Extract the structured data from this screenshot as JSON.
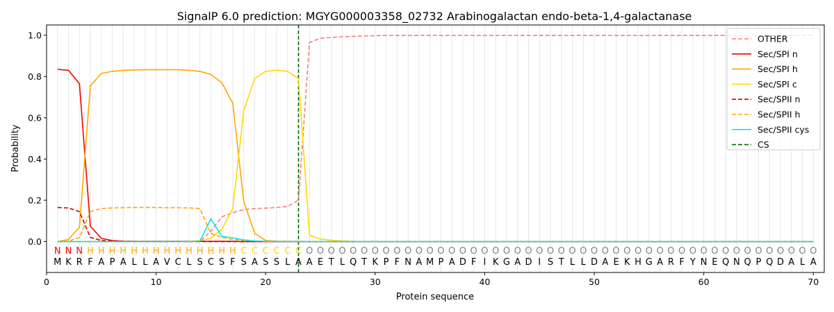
{
  "chart_data": {
    "type": "line",
    "title": "SignalP 6.0 prediction: MGYG000003358_02732 Arabinogalactan endo-beta-1,4-galactanase",
    "xlabel": "Protein sequence",
    "ylabel": "Probability",
    "xlim": [
      0,
      71
    ],
    "ylim": [
      -0.15,
      1.05
    ],
    "x_ticks": [
      "0",
      "10",
      "20",
      "30",
      "40",
      "50",
      "60",
      "70"
    ],
    "y_ticks": [
      "0.0",
      "0.2",
      "0.4",
      "0.6",
      "0.8",
      "1.0"
    ],
    "legend_position": "top-right",
    "sequence": [
      "M",
      "K",
      "R",
      "F",
      "A",
      "P",
      "A",
      "L",
      "L",
      "A",
      "V",
      "C",
      "L",
      "S",
      "C",
      "S",
      "F",
      "S",
      "A",
      "S",
      "S",
      "L",
      "A",
      "A",
      "E",
      "T",
      "L",
      "Q",
      "T",
      "K",
      "P",
      "F",
      "N",
      "A",
      "M",
      "P",
      "A",
      "D",
      "F",
      "I",
      "K",
      "G",
      "A",
      "D",
      "I",
      "S",
      "T",
      "L",
      "L",
      "D",
      "A",
      "E",
      "K",
      "H",
      "G",
      "A",
      "R",
      "F",
      "Y",
      "N",
      "E",
      "Q",
      "N",
      "Q",
      "P",
      "Q",
      "D",
      "A",
      "L",
      "A"
    ],
    "states": [
      "N",
      "N",
      "N",
      "H",
      "H",
      "H",
      "H",
      "H",
      "H",
      "H",
      "H",
      "H",
      "H",
      "H",
      "H",
      "H",
      "H",
      "C",
      "C",
      "C",
      "C",
      "C",
      "C",
      "O",
      "O",
      "O",
      "O",
      "O",
      "O",
      "O",
      "O",
      "O",
      "O",
      "O",
      "O",
      "O",
      "O",
      "O",
      "O",
      "O",
      "O",
      "O",
      "O",
      "O",
      "O",
      "O",
      "O",
      "O",
      "O",
      "O",
      "O",
      "O",
      "O",
      "O",
      "O",
      "O",
      "O",
      "O",
      "O",
      "O",
      "O",
      "O",
      "O",
      "O",
      "O",
      "O",
      "O",
      "O",
      "O",
      "O"
    ],
    "state_colors": {
      "N": "#ff0000",
      "H": "#ffa500",
      "C": "#ffd700",
      "O": "#808080"
    },
    "cleavage_site": 23,
    "series": [
      {
        "name": "OTHER",
        "color": "#f08080",
        "dash": "dashed",
        "values": [
          0.0,
          0.0,
          0.0,
          0.0,
          0.0,
          0.0,
          0.0,
          0.0,
          0.0,
          0.0,
          0.0,
          0.0,
          0.0,
          0.0,
          0.05,
          0.12,
          0.14,
          0.155,
          0.16,
          0.162,
          0.165,
          0.17,
          0.2,
          0.965,
          0.985,
          0.99,
          0.993,
          0.995,
          0.997,
          0.998,
          0.999,
          0.999,
          0.999,
          0.999,
          0.999,
          0.999,
          0.999,
          0.999,
          0.999,
          0.999,
          0.999,
          0.999,
          0.999,
          0.999,
          0.999,
          0.999,
          0.999,
          0.999,
          0.999,
          0.999,
          0.999,
          0.999,
          0.999,
          0.999,
          0.999,
          0.999,
          0.999,
          0.999,
          0.999,
          0.999,
          0.999,
          0.999,
          0.999,
          0.999,
          0.999,
          0.999,
          0.999,
          0.999,
          0.999,
          0.999
        ]
      },
      {
        "name": "Sec/SPI n",
        "color": "#ee0000",
        "dash": "solid",
        "values": [
          0.835,
          0.83,
          0.765,
          0.075,
          0.015,
          0.005,
          0.002,
          0.001,
          0.001,
          0.001,
          0.001,
          0.001,
          0.001,
          0.001,
          0.001,
          0.001,
          0.001,
          0.0,
          0.0,
          0.0,
          0.0,
          0.0,
          0.0,
          0.0,
          0.0,
          0.0,
          0.0,
          0.0,
          0.0,
          0.0,
          0.0,
          0.0,
          0.0,
          0.0,
          0.0,
          0.0,
          0.0,
          0.0,
          0.0,
          0.0,
          0.0,
          0.0,
          0.0,
          0.0,
          0.0,
          0.0,
          0.0,
          0.0,
          0.0,
          0.0,
          0.0,
          0.0,
          0.0,
          0.0,
          0.0,
          0.0,
          0.0,
          0.0,
          0.0,
          0.0,
          0.0,
          0.0,
          0.0,
          0.0,
          0.0,
          0.0,
          0.0,
          0.0,
          0.0,
          0.0
        ]
      },
      {
        "name": "Sec/SPI h",
        "color": "#ffa500",
        "dash": "solid",
        "values": [
          0.0,
          0.01,
          0.07,
          0.755,
          0.815,
          0.825,
          0.83,
          0.832,
          0.833,
          0.833,
          0.833,
          0.833,
          0.83,
          0.825,
          0.81,
          0.77,
          0.67,
          0.195,
          0.04,
          0.005,
          0.002,
          0.001,
          0.001,
          0.0,
          0.0,
          0.0,
          0.0,
          0.0,
          0.0,
          0.0,
          0.0,
          0.0,
          0.0,
          0.0,
          0.0,
          0.0,
          0.0,
          0.0,
          0.0,
          0.0,
          0.0,
          0.0,
          0.0,
          0.0,
          0.0,
          0.0,
          0.0,
          0.0,
          0.0,
          0.0,
          0.0,
          0.0,
          0.0,
          0.0,
          0.0,
          0.0,
          0.0,
          0.0,
          0.0,
          0.0,
          0.0,
          0.0,
          0.0,
          0.0,
          0.0,
          0.0,
          0.0,
          0.0,
          0.0,
          0.0
        ]
      },
      {
        "name": "Sec/SPI c",
        "color": "#ffd700",
        "dash": "solid",
        "values": [
          0.0,
          0.0,
          0.0,
          0.0,
          0.0,
          0.0,
          0.0,
          0.0,
          0.0,
          0.0,
          0.0,
          0.0,
          0.001,
          0.005,
          0.015,
          0.06,
          0.16,
          0.635,
          0.79,
          0.825,
          0.83,
          0.825,
          0.79,
          0.03,
          0.012,
          0.006,
          0.003,
          0.001,
          0.0,
          0.0,
          0.0,
          0.0,
          0.0,
          0.0,
          0.0,
          0.0,
          0.0,
          0.0,
          0.0,
          0.0,
          0.0,
          0.0,
          0.0,
          0.0,
          0.0,
          0.0,
          0.0,
          0.0,
          0.0,
          0.0,
          0.0,
          0.0,
          0.0,
          0.0,
          0.0,
          0.0,
          0.0,
          0.0,
          0.0,
          0.0,
          0.0,
          0.0,
          0.0,
          0.0,
          0.0,
          0.0,
          0.0,
          0.0,
          0.0,
          0.0
        ]
      },
      {
        "name": "Sec/SPII n",
        "color": "#cc0000",
        "dash": "dashed",
        "values": [
          0.165,
          0.163,
          0.145,
          0.02,
          0.005,
          0.002,
          0.001,
          0.0,
          0.0,
          0.0,
          0.0,
          0.0,
          0.0,
          0.0,
          0.0,
          0.0,
          0.0,
          0.0,
          0.0,
          0.0,
          0.0,
          0.0,
          0.0,
          0.0,
          0.0,
          0.0,
          0.0,
          0.0,
          0.0,
          0.0,
          0.0,
          0.0,
          0.0,
          0.0,
          0.0,
          0.0,
          0.0,
          0.0,
          0.0,
          0.0,
          0.0,
          0.0,
          0.0,
          0.0,
          0.0,
          0.0,
          0.0,
          0.0,
          0.0,
          0.0,
          0.0,
          0.0,
          0.0,
          0.0,
          0.0,
          0.0,
          0.0,
          0.0,
          0.0,
          0.0,
          0.0,
          0.0,
          0.0,
          0.0,
          0.0,
          0.0,
          0.0,
          0.0,
          0.0,
          0.0
        ]
      },
      {
        "name": "Sec/SPII h",
        "color": "#ffa500",
        "dash": "dashed",
        "values": [
          0.0,
          0.002,
          0.02,
          0.145,
          0.16,
          0.163,
          0.164,
          0.165,
          0.165,
          0.165,
          0.164,
          0.164,
          0.163,
          0.16,
          0.04,
          0.02,
          0.01,
          0.005,
          0.003,
          0.002,
          0.001,
          0.0,
          0.0,
          0.0,
          0.0,
          0.0,
          0.0,
          0.0,
          0.0,
          0.0,
          0.0,
          0.0,
          0.0,
          0.0,
          0.0,
          0.0,
          0.0,
          0.0,
          0.0,
          0.0,
          0.0,
          0.0,
          0.0,
          0.0,
          0.0,
          0.0,
          0.0,
          0.0,
          0.0,
          0.0,
          0.0,
          0.0,
          0.0,
          0.0,
          0.0,
          0.0,
          0.0,
          0.0,
          0.0,
          0.0,
          0.0,
          0.0,
          0.0,
          0.0,
          0.0,
          0.0,
          0.0,
          0.0,
          0.0,
          0.0
        ]
      },
      {
        "name": "Sec/SPII cys",
        "color": "#00e5ee",
        "dash": "solid",
        "values": [
          0.0,
          0.0,
          0.0,
          0.0,
          0.0,
          0.0,
          0.0,
          0.0,
          0.0,
          0.0,
          0.0,
          0.0,
          0.0,
          0.002,
          0.11,
          0.025,
          0.018,
          0.008,
          0.003,
          0.001,
          0.0,
          0.0,
          0.0,
          0.0,
          0.0,
          0.0,
          0.0,
          0.0,
          0.0,
          0.0,
          0.0,
          0.0,
          0.0,
          0.0,
          0.0,
          0.0,
          0.0,
          0.0,
          0.0,
          0.0,
          0.0,
          0.0,
          0.0,
          0.0,
          0.0,
          0.0,
          0.0,
          0.0,
          0.0,
          0.0,
          0.0,
          0.0,
          0.0,
          0.0,
          0.0,
          0.0,
          0.0,
          0.0,
          0.0,
          0.0,
          0.0,
          0.0,
          0.0,
          0.0,
          0.0,
          0.0,
          0.0,
          0.0,
          0.0,
          0.0
        ]
      }
    ],
    "cs_legend": {
      "name": "CS",
      "color": "#006400",
      "dash": "dashed"
    }
  }
}
